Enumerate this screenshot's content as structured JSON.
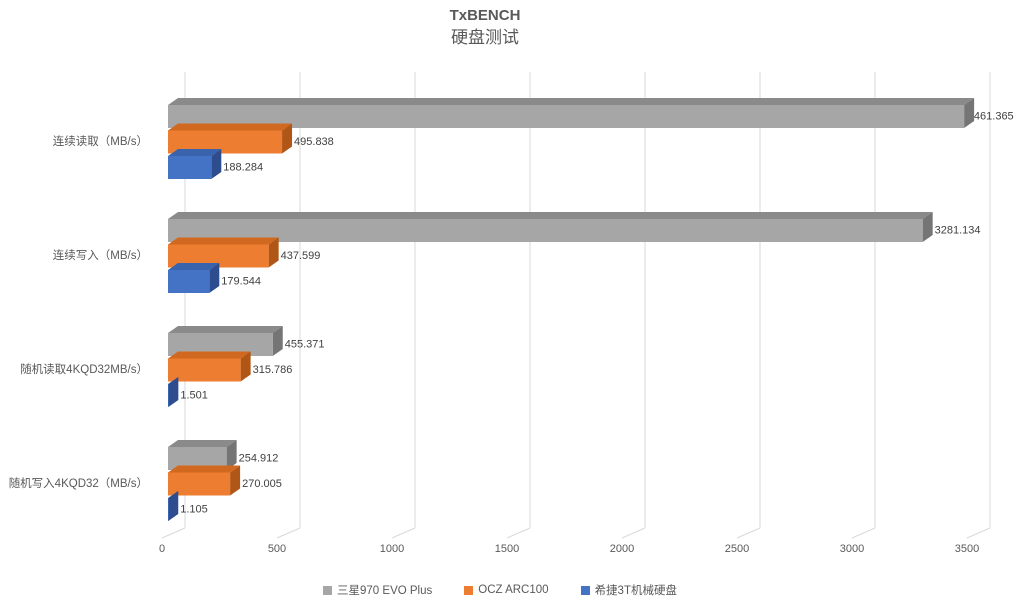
{
  "title": "TxBENCH",
  "subtitle": "硬盘测试",
  "colors": {
    "background": "#ffffff",
    "gridline": "#d9d9d9",
    "axis_text": "#595959",
    "value_label": "#404040"
  },
  "chart_data": {
    "type": "bar",
    "orientation": "horizontal",
    "style": "3d",
    "title": "TxBENCH",
    "subtitle": "硬盘测试",
    "categories": [
      "连续读取（MB/s）",
      "连续写入（MB/s）",
      "随机读取4KQD32MB/s）",
      "随机写入4KQD32（MB/s）"
    ],
    "series": [
      {
        "name": "三星970 EVO Plus",
        "color": "#a6a6a6",
        "color_top": "#8a8a8a",
        "color_side": "#757575",
        "values": [
          3461.365,
          3281.134,
          455.371,
          254.912
        ]
      },
      {
        "name": "OCZ ARC100",
        "color": "#ed7d31",
        "color_top": "#d0691f",
        "color_side": "#b05616",
        "values": [
          495.838,
          437.599,
          315.786,
          270.005
        ]
      },
      {
        "name": "希捷3T机械硬盘",
        "color": "#4472c4",
        "color_top": "#3a63ae",
        "color_side": "#2e4d8f",
        "values": [
          188.284,
          179.544,
          1.501,
          1.105
        ]
      }
    ],
    "value_label_decimals": 3,
    "xlim": [
      0,
      3500
    ],
    "x_ticks": [
      0,
      500,
      1000,
      1500,
      2000,
      2500,
      3000,
      3500
    ],
    "xlabel": "",
    "ylabel": "",
    "grid": true,
    "legend_position": "bottom"
  }
}
